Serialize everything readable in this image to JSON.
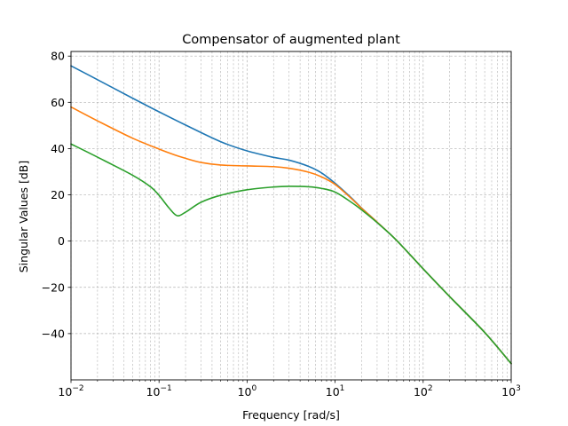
{
  "chart_data": {
    "type": "line",
    "title": "Compensator of augmented plant",
    "xlabel": "Frequency [rad/s]",
    "ylabel": "Singular Values [dB]",
    "xscale": "log",
    "xlim": [
      0.01,
      1000
    ],
    "ylim": [
      -60,
      82
    ],
    "grid": true,
    "xticks": [
      {
        "value": 0.01,
        "base": "10",
        "exp": "−2"
      },
      {
        "value": 0.1,
        "base": "10",
        "exp": "−1"
      },
      {
        "value": 1,
        "base": "10",
        "exp": "0"
      },
      {
        "value": 10,
        "base": "10",
        "exp": "1"
      },
      {
        "value": 100,
        "base": "10",
        "exp": "2"
      },
      {
        "value": 1000,
        "base": "10",
        "exp": "3"
      }
    ],
    "yticks": [
      {
        "value": 80,
        "label": "80"
      },
      {
        "value": 60,
        "label": "60"
      },
      {
        "value": 40,
        "label": "40"
      },
      {
        "value": 20,
        "label": "20"
      },
      {
        "value": 0,
        "label": "0"
      },
      {
        "value": -20,
        "label": "−20"
      },
      {
        "value": -40,
        "label": "−40"
      }
    ],
    "series": [
      {
        "color": "#1f77b4",
        "x": [
          0.01,
          0.02,
          0.05,
          0.1,
          0.2,
          0.5,
          1,
          2,
          3,
          5,
          7,
          10,
          15,
          20,
          30,
          50,
          100,
          200,
          500,
          1000
        ],
        "y": [
          75.8,
          69.8,
          61.8,
          55.9,
          50.2,
          43.0,
          39.0,
          36.2,
          35.0,
          32.3,
          29.5,
          25.0,
          19.0,
          14.3,
          8.2,
          0.3,
          -12.0,
          -24.0,
          -39.5,
          -53.0
        ]
      },
      {
        "color": "#ff7f0e",
        "x": [
          0.01,
          0.02,
          0.05,
          0.1,
          0.15,
          0.2,
          0.3,
          0.5,
          1,
          2,
          3,
          5,
          7,
          10,
          15,
          20,
          30,
          50,
          100,
          200,
          500,
          1000
        ],
        "y": [
          58.0,
          52.0,
          44.5,
          39.8,
          37.3,
          35.8,
          34.0,
          32.9,
          32.5,
          32.2,
          31.5,
          29.8,
          27.8,
          24.5,
          18.7,
          14.2,
          8.2,
          0.3,
          -12.0,
          -24.0,
          -39.5,
          -53.0
        ]
      },
      {
        "color": "#2ca02c",
        "x": [
          0.01,
          0.02,
          0.05,
          0.08,
          0.1,
          0.13,
          0.16,
          0.2,
          0.3,
          0.5,
          1,
          2,
          3,
          5,
          7,
          10,
          15,
          20,
          30,
          50,
          100,
          200,
          500,
          1000
        ],
        "y": [
          42.0,
          36.3,
          28.5,
          23.5,
          19.8,
          14.3,
          11.0,
          12.5,
          16.8,
          19.8,
          22.2,
          23.4,
          23.7,
          23.5,
          22.8,
          21.2,
          17.0,
          13.5,
          8.0,
          0.3,
          -12.0,
          -24.0,
          -39.5,
          -53.0
        ]
      }
    ]
  }
}
